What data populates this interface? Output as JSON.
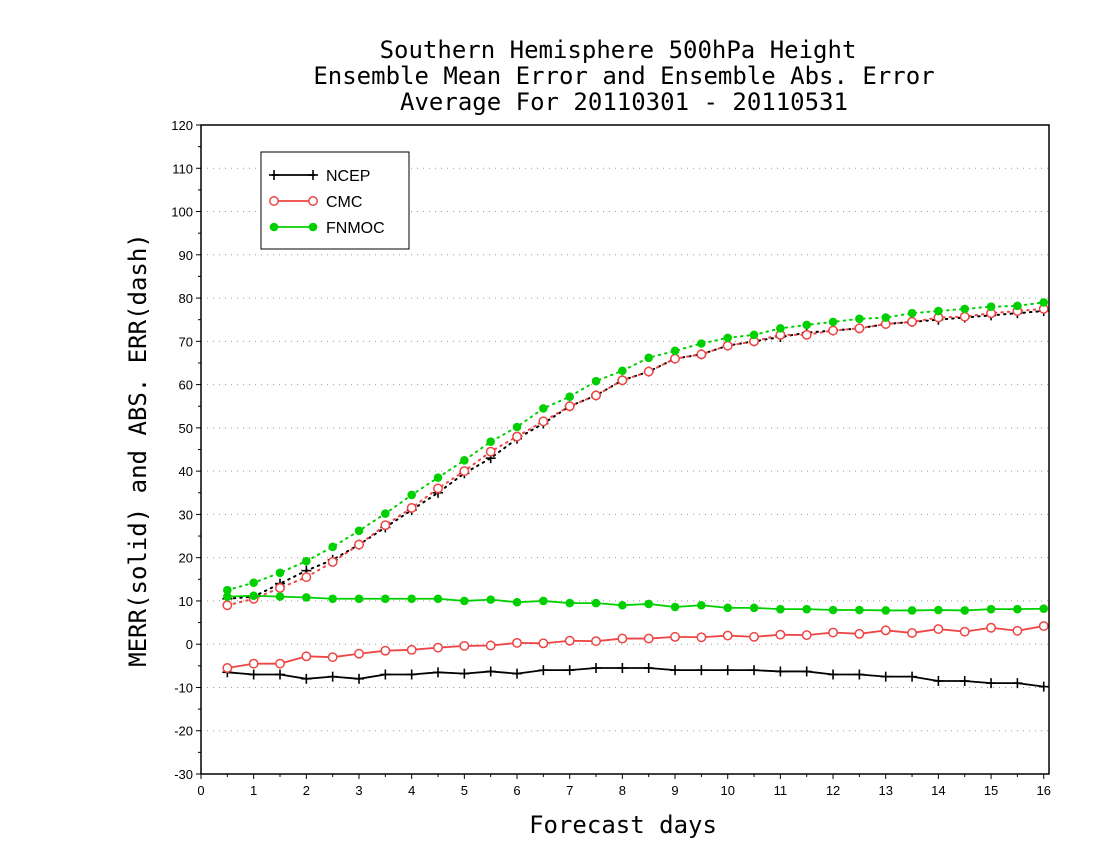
{
  "chart_data": {
    "type": "line",
    "title_lines": [
      "Southern Hemisphere 500hPa Height",
      "Ensemble Mean Error and Ensemble Abs. Error",
      "Average For 20110301 - 20110531"
    ],
    "xlabel": "Forecast days",
    "ylabel": "MERR(solid) and ABS. ERR(dash)",
    "xlim": [
      0,
      16.1
    ],
    "ylim": [
      -30,
      120
    ],
    "x_ticks": [
      "0",
      "1",
      "2",
      "3",
      "4",
      "5",
      "6",
      "7",
      "8",
      "9",
      "10",
      "11",
      "12",
      "13",
      "14",
      "15",
      "16"
    ],
    "y_ticks": [
      "-30",
      "-20",
      "-10",
      "0",
      "10",
      "20",
      "30",
      "40",
      "50",
      "60",
      "70",
      "80",
      "90",
      "100",
      "110",
      "120"
    ],
    "grid": "horizontal dotted",
    "legend_position": "top-left",
    "x": [
      0.5,
      1,
      1.5,
      2,
      2.5,
      3,
      3.5,
      4,
      4.5,
      5,
      5.5,
      6,
      6.5,
      7,
      7.5,
      8,
      8.5,
      9,
      9.5,
      10,
      10.5,
      11,
      11.5,
      12,
      12.5,
      13,
      13.5,
      14,
      14.5,
      15,
      15.5,
      16
    ],
    "series": [
      {
        "name": "NCEP",
        "color": "#000000",
        "marker": "plus",
        "mean_error": [
          -6.5,
          -7,
          -7,
          -8,
          -7.5,
          -8,
          -7,
          -7,
          -6.5,
          -6.8,
          -6.3,
          -6.8,
          -6,
          -6,
          -5.5,
          -5.5,
          -5.5,
          -6,
          -6,
          -6,
          -6,
          -6.3,
          -6.3,
          -7,
          -7,
          -7.5,
          -7.5,
          -8.5,
          -8.5,
          -9,
          -9,
          -9.8
        ],
        "abs_error": [
          10.5,
          11,
          14,
          17,
          19.5,
          23,
          27,
          31,
          35,
          39.5,
          43,
          47.5,
          51,
          55,
          57.5,
          61,
          63,
          66,
          67,
          69,
          70,
          71,
          72,
          72.5,
          73,
          74,
          74.5,
          75,
          75.5,
          76,
          76.5,
          77
        ]
      },
      {
        "name": "CMC",
        "color": "#ee4444",
        "marker": "open-circle",
        "mean_error": [
          -5.5,
          -4.5,
          -4.5,
          -2.8,
          -3,
          -2.2,
          -1.5,
          -1.3,
          -0.8,
          -0.4,
          -0.3,
          0.3,
          0.2,
          0.8,
          0.7,
          1.3,
          1.3,
          1.7,
          1.6,
          2,
          1.7,
          2.2,
          2.1,
          2.7,
          2.4,
          3.2,
          2.6,
          3.5,
          2.9,
          3.8,
          3.1,
          4.2
        ],
        "abs_error": [
          9,
          10.5,
          13,
          15.5,
          19,
          23,
          27.5,
          31.5,
          36,
          40,
          44.5,
          48,
          51.5,
          55,
          57.5,
          61,
          63,
          66,
          67,
          69,
          70,
          71.5,
          71.5,
          72.5,
          73,
          74,
          74.5,
          75.5,
          75.7,
          76.5,
          77,
          77.5
        ]
      },
      {
        "name": "FNMOC",
        "color": "#00d000",
        "marker": "filled-circle",
        "mean_error": [
          11,
          11.2,
          11,
          10.8,
          10.5,
          10.5,
          10.5,
          10.5,
          10.5,
          10,
          10.3,
          9.7,
          10,
          9.5,
          9.5,
          9,
          9.3,
          8.6,
          9,
          8.4,
          8.4,
          8.1,
          8.1,
          7.9,
          7.9,
          7.8,
          7.8,
          7.9,
          7.8,
          8.1,
          8.1,
          8.2
        ],
        "abs_error": [
          12.5,
          14.2,
          16.5,
          19.2,
          22.5,
          26.2,
          30.2,
          34.5,
          38.5,
          42.5,
          46.8,
          50.2,
          54.5,
          57.2,
          60.8,
          63.2,
          66.2,
          67.8,
          69.5,
          70.8,
          71.5,
          73,
          73.8,
          74.5,
          75.2,
          75.5,
          76.5,
          77,
          77.5,
          78,
          78.2,
          79
        ]
      }
    ]
  }
}
